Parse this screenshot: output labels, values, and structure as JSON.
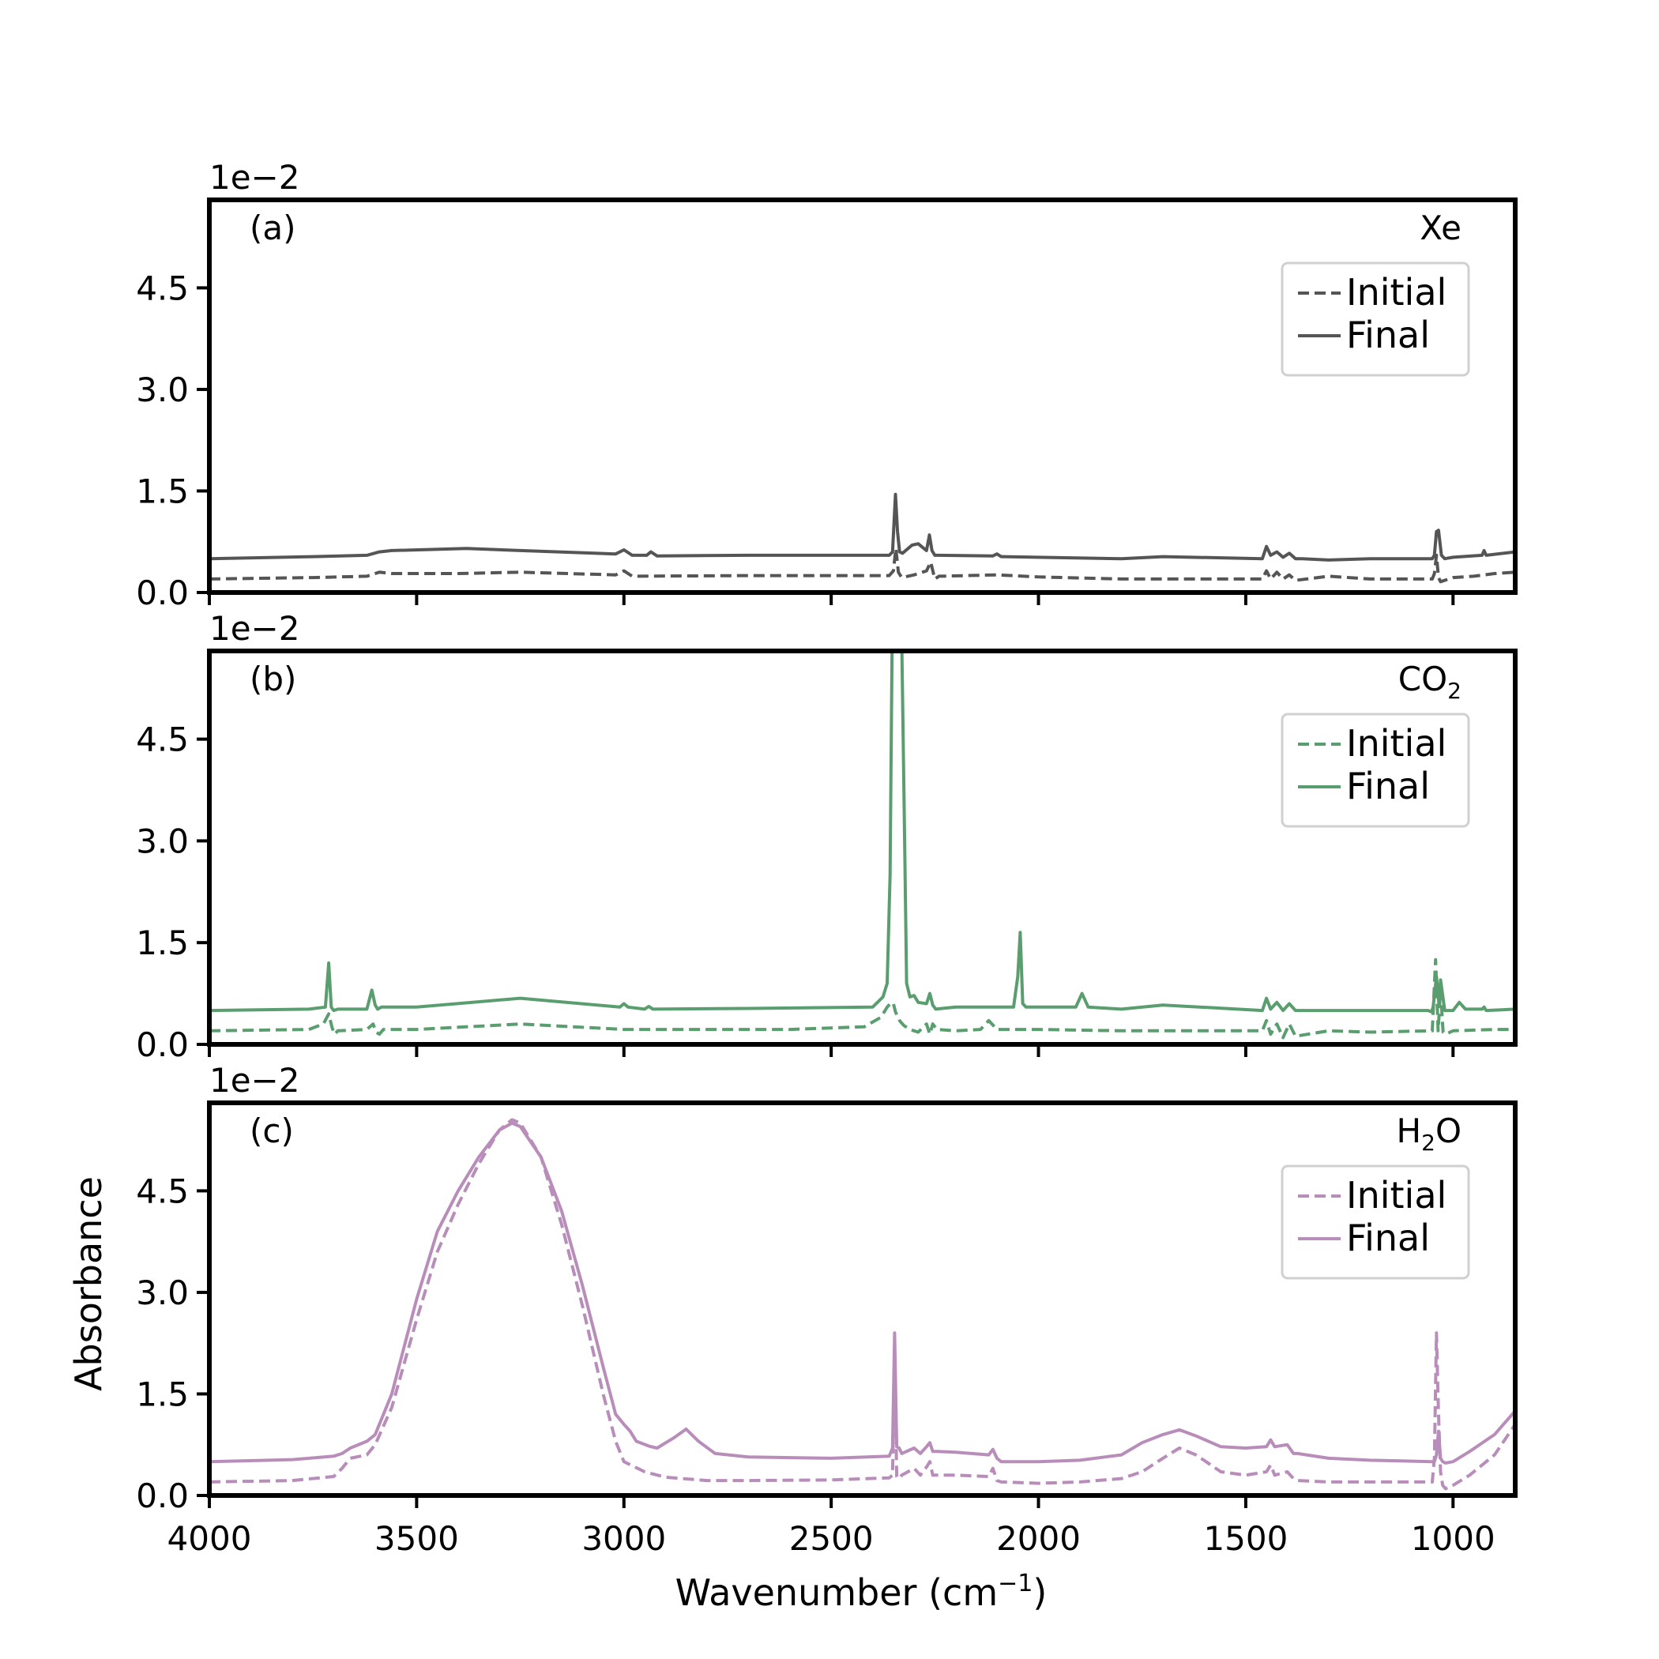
{
  "figure": {
    "xlabel": "Wavenumber (cm",
    "xlabel_sup": "−1",
    "xlabel_close": ")",
    "ylabel": "Absorbance",
    "xticks": [
      "4000",
      "3500",
      "3000",
      "2500",
      "2000",
      "1500",
      "1000"
    ],
    "yticks": [
      "0.0",
      "1.5",
      "3.0",
      "4.5"
    ],
    "offset_label": "1e−2"
  },
  "legend": {
    "initial_label": "Initial",
    "final_label": "Final"
  },
  "chart_data": [
    {
      "type": "line",
      "panel_label": "(a)",
      "sample": "Xe",
      "color": "#555555",
      "xlim": [
        4000,
        850
      ],
      "ylim": [
        0,
        5.8
      ],
      "y_scale_factor": "1e-2",
      "x_unit": "cm^-1",
      "series": [
        {
          "name": "Initial",
          "linestyle": "dashed",
          "x": [
            4000,
            3750,
            3620,
            3590,
            3560,
            3400,
            3250,
            3020,
            3000,
            2980,
            2700,
            2360,
            2350,
            2344,
            2338,
            2330,
            2300,
            2270,
            2260,
            2250,
            2240,
            2100,
            2000,
            1800,
            1460,
            1450,
            1440,
            1425,
            1410,
            1395,
            1380,
            1300,
            1200,
            1050,
            1045,
            1040,
            1035,
            1030,
            1000,
            950,
            900,
            850
          ],
          "y": [
            0.2,
            0.22,
            0.24,
            0.3,
            0.28,
            0.28,
            0.3,
            0.26,
            0.32,
            0.24,
            0.25,
            0.25,
            0.32,
            0.65,
            0.3,
            0.22,
            0.26,
            0.32,
            0.45,
            0.2,
            0.24,
            0.26,
            0.23,
            0.2,
            0.2,
            0.32,
            0.2,
            0.3,
            0.2,
            0.26,
            0.18,
            0.24,
            0.2,
            0.2,
            0.28,
            0.55,
            0.22,
            0.16,
            0.22,
            0.24,
            0.28,
            0.3
          ]
        },
        {
          "name": "Final",
          "linestyle": "solid",
          "x": [
            4000,
            3750,
            3620,
            3590,
            3560,
            3380,
            3250,
            3020,
            3000,
            2980,
            2945,
            2935,
            2920,
            2700,
            2360,
            2352,
            2345,
            2340,
            2335,
            2328,
            2305,
            2290,
            2270,
            2263,
            2257,
            2250,
            2240,
            2110,
            2100,
            2090,
            1800,
            1700,
            1460,
            1450,
            1440,
            1425,
            1410,
            1395,
            1380,
            1365,
            1300,
            1200,
            1050,
            1045,
            1040,
            1035,
            1028,
            1020,
            1000,
            930,
            925,
            920,
            850
          ],
          "y": [
            0.5,
            0.53,
            0.55,
            0.6,
            0.62,
            0.65,
            0.62,
            0.57,
            0.63,
            0.55,
            0.55,
            0.6,
            0.54,
            0.55,
            0.55,
            0.6,
            1.45,
            0.9,
            0.6,
            0.58,
            0.7,
            0.72,
            0.62,
            0.85,
            0.62,
            0.55,
            0.55,
            0.54,
            0.57,
            0.53,
            0.5,
            0.53,
            0.5,
            0.68,
            0.55,
            0.6,
            0.52,
            0.58,
            0.5,
            0.5,
            0.48,
            0.5,
            0.5,
            0.55,
            0.9,
            0.92,
            0.55,
            0.5,
            0.52,
            0.55,
            0.62,
            0.55,
            0.6
          ]
        }
      ]
    },
    {
      "type": "line",
      "panel_label": "(b)",
      "sample": "CO",
      "sample_sub": "2",
      "color": "#5a9e6f",
      "xlim": [
        4000,
        850
      ],
      "ylim": [
        0,
        5.8
      ],
      "y_scale_factor": "1e-2",
      "x_unit": "cm^-1",
      "series": [
        {
          "name": "Initial",
          "linestyle": "dashed",
          "x": [
            4000,
            3760,
            3725,
            3712,
            3704,
            3698,
            3690,
            3620,
            3605,
            3598,
            3590,
            3580,
            3500,
            3250,
            3000,
            2600,
            2420,
            2380,
            2365,
            2355,
            2350,
            2345,
            2335,
            2325,
            2310,
            2290,
            2270,
            2262,
            2255,
            2245,
            2200,
            2140,
            2120,
            2100,
            2000,
            1800,
            1460,
            1450,
            1440,
            1425,
            1410,
            1395,
            1380,
            1300,
            1200,
            1050,
            1042,
            1036,
            1030,
            1024,
            1018,
            1000,
            900,
            850
          ],
          "y": [
            0.2,
            0.22,
            0.3,
            0.45,
            0.25,
            0.15,
            0.2,
            0.22,
            0.3,
            0.18,
            0.15,
            0.22,
            0.22,
            0.3,
            0.22,
            0.22,
            0.26,
            0.4,
            0.55,
            0.62,
            0.6,
            0.48,
            0.35,
            0.28,
            0.22,
            0.18,
            0.3,
            0.15,
            0.3,
            0.22,
            0.2,
            0.22,
            0.35,
            0.22,
            0.22,
            0.2,
            0.2,
            0.35,
            0.15,
            0.3,
            0.1,
            0.3,
            0.12,
            0.2,
            0.18,
            0.2,
            1.25,
            0.2,
            0.8,
            0.18,
            0.15,
            0.2,
            0.22,
            0.22
          ]
        },
        {
          "name": "Final",
          "linestyle": "solid",
          "x": [
            4000,
            3760,
            3720,
            3712,
            3706,
            3700,
            3690,
            3620,
            3608,
            3600,
            3594,
            3585,
            3500,
            3250,
            3010,
            3000,
            2990,
            2950,
            2940,
            2930,
            2700,
            2400,
            2375,
            2365,
            2358,
            2353,
            2348,
            2345,
            2340,
            2336,
            2330,
            2324,
            2318,
            2310,
            2300,
            2290,
            2270,
            2262,
            2255,
            2248,
            2200,
            2100,
            2060,
            2050,
            2044,
            2038,
            2030,
            2000,
            1910,
            1895,
            1880,
            1800,
            1700,
            1460,
            1450,
            1440,
            1425,
            1410,
            1395,
            1380,
            1370,
            1300,
            1200,
            1060,
            1052,
            1048,
            1040,
            1034,
            1030,
            1020,
            1000,
            985,
            970,
            930,
            925,
            920,
            850
          ],
          "y": [
            0.5,
            0.52,
            0.55,
            1.2,
            0.55,
            0.5,
            0.52,
            0.52,
            0.8,
            0.58,
            0.52,
            0.55,
            0.55,
            0.68,
            0.55,
            0.6,
            0.55,
            0.52,
            0.56,
            0.52,
            0.53,
            0.55,
            0.7,
            0.9,
            2.5,
            6.0,
            6.0,
            6.0,
            6.0,
            6.0,
            6.0,
            3.5,
            0.9,
            0.7,
            0.72,
            0.62,
            0.6,
            0.75,
            0.58,
            0.52,
            0.55,
            0.55,
            0.55,
            1.0,
            1.65,
            0.6,
            0.55,
            0.55,
            0.55,
            0.75,
            0.55,
            0.52,
            0.58,
            0.5,
            0.68,
            0.52,
            0.62,
            0.5,
            0.6,
            0.5,
            0.5,
            0.5,
            0.5,
            0.5,
            0.48,
            0.55,
            1.0,
            0.6,
            0.95,
            0.5,
            0.5,
            0.62,
            0.52,
            0.52,
            0.55,
            0.5,
            0.52
          ]
        }
      ]
    },
    {
      "type": "line",
      "panel_label": "(c)",
      "sample": "H",
      "sample_sub": "2",
      "sample_tail": "O",
      "color": "#b88dba",
      "xlim": [
        4000,
        850
      ],
      "ylim": [
        0,
        5.8
      ],
      "y_scale_factor": "1e-2",
      "x_unit": "cm^-1",
      "series": [
        {
          "name": "Initial",
          "linestyle": "dashed",
          "x": [
            4000,
            3800,
            3700,
            3680,
            3660,
            3620,
            3600,
            3560,
            3500,
            3450,
            3400,
            3350,
            3300,
            3270,
            3250,
            3200,
            3150,
            3100,
            3050,
            3020,
            3000,
            2950,
            2900,
            2800,
            2700,
            2500,
            2360,
            2352,
            2347,
            2342,
            2336,
            2330,
            2300,
            2285,
            2270,
            2262,
            2255,
            2245,
            2200,
            2120,
            2110,
            2100,
            2090,
            2000,
            1900,
            1800,
            1750,
            1700,
            1660,
            1620,
            1560,
            1500,
            1450,
            1440,
            1430,
            1400,
            1385,
            1375,
            1300,
            1200,
            1050,
            1045,
            1040,
            1035,
            1030,
            1025,
            1018,
            1000,
            960,
            900,
            850
          ],
          "y": [
            0.2,
            0.22,
            0.28,
            0.4,
            0.55,
            0.6,
            0.75,
            1.3,
            2.6,
            3.6,
            4.3,
            4.9,
            5.4,
            5.55,
            5.5,
            5.0,
            4.0,
            2.8,
            1.5,
            0.8,
            0.5,
            0.35,
            0.27,
            0.22,
            0.22,
            0.23,
            0.26,
            0.3,
            2.0,
            0.28,
            0.25,
            0.3,
            0.4,
            0.3,
            0.42,
            0.5,
            0.3,
            0.3,
            0.3,
            0.28,
            0.4,
            0.22,
            0.2,
            0.18,
            0.2,
            0.25,
            0.35,
            0.55,
            0.7,
            0.6,
            0.35,
            0.3,
            0.35,
            0.45,
            0.3,
            0.35,
            0.25,
            0.22,
            0.2,
            0.2,
            0.2,
            0.55,
            2.4,
            1.2,
            0.35,
            0.15,
            0.1,
            0.15,
            0.3,
            0.6,
            1.05
          ]
        },
        {
          "name": "Final",
          "linestyle": "solid",
          "x": [
            4000,
            3800,
            3700,
            3680,
            3660,
            3620,
            3600,
            3560,
            3500,
            3450,
            3400,
            3350,
            3300,
            3270,
            3250,
            3200,
            3150,
            3100,
            3050,
            3020,
            3000,
            2985,
            2970,
            2940,
            2920,
            2880,
            2850,
            2820,
            2780,
            2700,
            2500,
            2360,
            2352,
            2347,
            2342,
            2336,
            2330,
            2300,
            2285,
            2270,
            2262,
            2255,
            2245,
            2200,
            2120,
            2110,
            2100,
            2090,
            2000,
            1900,
            1800,
            1750,
            1700,
            1660,
            1620,
            1560,
            1500,
            1450,
            1440,
            1430,
            1400,
            1385,
            1375,
            1300,
            1200,
            1050,
            1045,
            1040,
            1035,
            1030,
            1025,
            1018,
            1000,
            960,
            900,
            850
          ],
          "y": [
            0.5,
            0.53,
            0.58,
            0.62,
            0.7,
            0.8,
            0.9,
            1.5,
            2.9,
            3.9,
            4.5,
            5.0,
            5.4,
            5.5,
            5.45,
            5.0,
            4.2,
            3.1,
            1.9,
            1.2,
            1.05,
            0.95,
            0.8,
            0.73,
            0.7,
            0.85,
            0.98,
            0.8,
            0.62,
            0.57,
            0.55,
            0.58,
            0.7,
            2.4,
            0.72,
            0.7,
            0.62,
            0.7,
            0.62,
            0.72,
            0.78,
            0.65,
            0.65,
            0.64,
            0.6,
            0.68,
            0.55,
            0.5,
            0.5,
            0.52,
            0.6,
            0.78,
            0.9,
            0.97,
            0.88,
            0.72,
            0.7,
            0.72,
            0.82,
            0.72,
            0.75,
            0.62,
            0.62,
            0.55,
            0.52,
            0.5,
            0.5,
            0.6,
            0.95,
            0.55,
            0.5,
            0.48,
            0.5,
            0.65,
            0.9,
            1.25
          ]
        }
      ]
    }
  ]
}
